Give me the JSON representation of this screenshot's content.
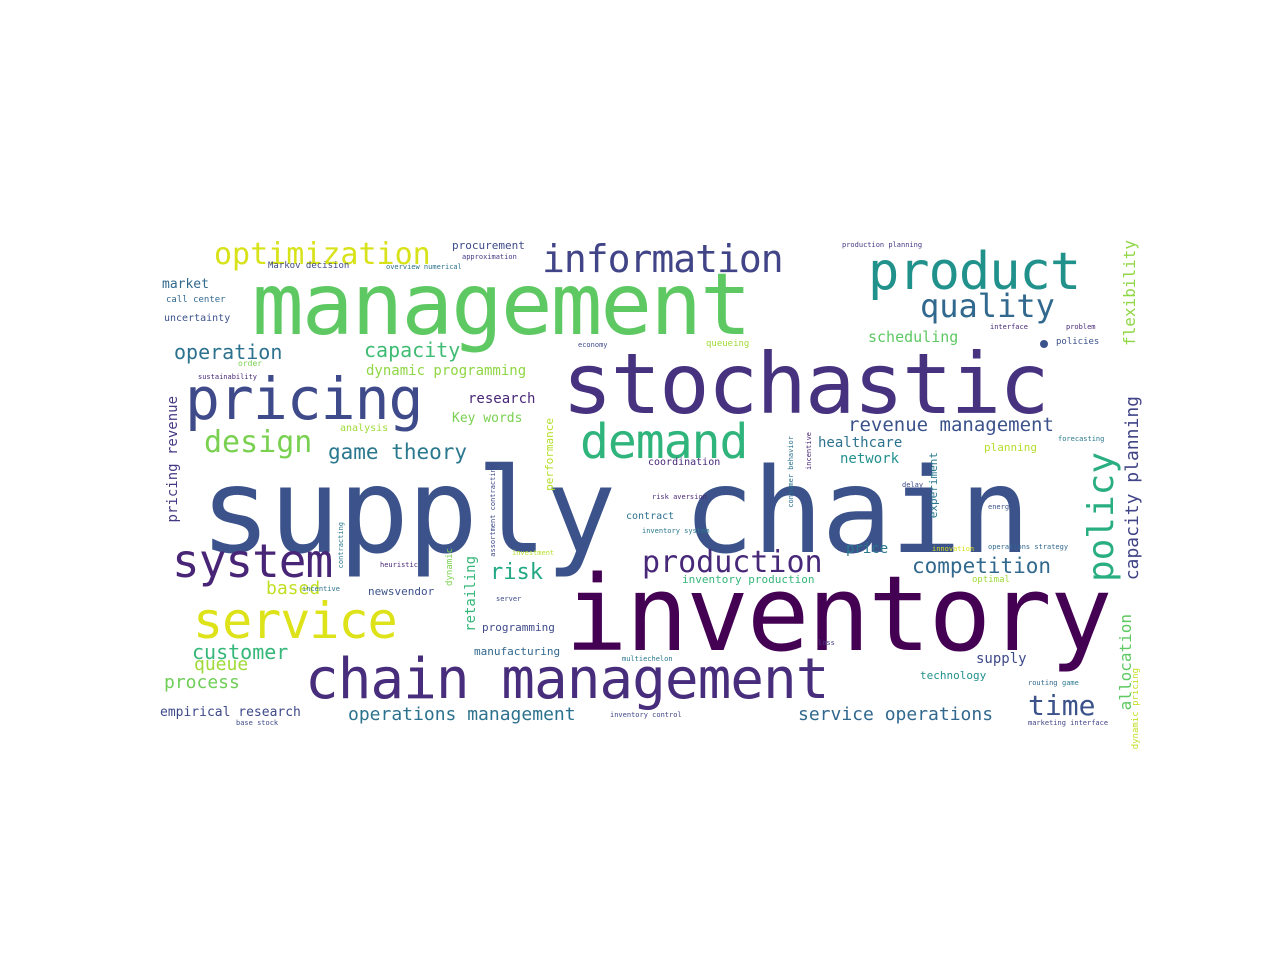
{
  "words": [
    {
      "text": "supply chain",
      "color": "#3b528b"
    },
    {
      "text": "inventory",
      "color": "#440154"
    },
    {
      "text": "management",
      "color": "#5ec962"
    },
    {
      "text": "stochastic",
      "color": "#46327e"
    },
    {
      "text": "chain management",
      "color": "#472d7b"
    },
    {
      "text": "pricing",
      "color": "#3e4a89"
    },
    {
      "text": "product",
      "color": "#21918c"
    },
    {
      "text": "demand",
      "color": "#2fb47c"
    },
    {
      "text": "service",
      "color": "#dde318"
    },
    {
      "text": "system",
      "color": "#482576"
    },
    {
      "text": "information",
      "color": "#414487"
    },
    {
      "text": "optimization",
      "color": "#d8e219"
    },
    {
      "text": "quality",
      "color": "#31688e"
    },
    {
      "text": "production",
      "color": "#482878"
    },
    {
      "text": "policy",
      "color": "#28ae80"
    },
    {
      "text": "design",
      "color": "#7ad151"
    },
    {
      "text": "time",
      "color": "#3b528b"
    },
    {
      "text": "operation",
      "color": "#2c728e"
    },
    {
      "text": "capacity",
      "color": "#3fbc73"
    },
    {
      "text": "game theory",
      "color": "#2a788e"
    },
    {
      "text": "revenue management",
      "color": "#3b528b"
    },
    {
      "text": "competition",
      "color": "#31688e"
    },
    {
      "text": "risk",
      "color": "#22a884"
    },
    {
      "text": "customer",
      "color": "#35b779"
    },
    {
      "text": "queue",
      "color": "#a0da39"
    },
    {
      "text": "process",
      "color": "#6ece58"
    },
    {
      "text": "operations management",
      "color": "#2c728e"
    },
    {
      "text": "service operations",
      "color": "#31688e"
    },
    {
      "text": "empirical research",
      "color": "#3e4a89"
    },
    {
      "text": "capacity planning",
      "color": "#414487"
    },
    {
      "text": "flexibility",
      "color": "#8fd744"
    },
    {
      "text": "allocation",
      "color": "#5ec962"
    },
    {
      "text": "dynamic programming",
      "color": "#8fd744"
    },
    {
      "text": "scheduling",
      "color": "#5ec962"
    },
    {
      "text": "research",
      "color": "#482878"
    },
    {
      "text": "Key words",
      "color": "#7ad151"
    },
    {
      "text": "healthcare",
      "color": "#2c728e"
    },
    {
      "text": "network",
      "color": "#21918c"
    },
    {
      "text": "price",
      "color": "#2a788e"
    },
    {
      "text": "based",
      "color": "#c2df23"
    },
    {
      "text": "newsvendor",
      "color": "#3b528b"
    },
    {
      "text": "programming",
      "color": "#3e4a89"
    },
    {
      "text": "manufacturing",
      "color": "#31688e"
    },
    {
      "text": "supply",
      "color": "#3e4a89"
    },
    {
      "text": "technology",
      "color": "#21918c"
    },
    {
      "text": "inventory production",
      "color": "#35b779"
    },
    {
      "text": "procurement",
      "color": "#3e4a89"
    },
    {
      "text": "market",
      "color": "#31688e"
    },
    {
      "text": "call center",
      "color": "#31688e"
    },
    {
      "text": "uncertainty",
      "color": "#3b528b"
    },
    {
      "text": "pricing revenue",
      "color": "#443983"
    },
    {
      "text": "retailing",
      "color": "#35b779"
    },
    {
      "text": "performance",
      "color": "#b5de2b"
    },
    {
      "text": "analysis",
      "color": "#a0da39"
    },
    {
      "text": "contract",
      "color": "#2c728e"
    },
    {
      "text": "coordination",
      "color": "#482878"
    },
    {
      "text": "experiment",
      "color": "#2a788e"
    },
    {
      "text": "queueing",
      "color": "#a0da39"
    },
    {
      "text": "policies",
      "color": "#3b528b"
    },
    {
      "text": "planning",
      "color": "#b5de2b"
    },
    {
      "text": "dynamic pricing",
      "color": "#c2df23"
    },
    {
      "text": "optimal",
      "color": "#a0da39"
    },
    {
      "text": "dynamic",
      "color": "#7ad151"
    },
    {
      "text": "Markov decision",
      "color": "#3e4a89"
    },
    {
      "text": "overview numerical",
      "color": "#2c728e"
    },
    {
      "text": "approximation",
      "color": "#443983"
    },
    {
      "text": "production planning",
      "color": "#443983"
    },
    {
      "text": "interface",
      "color": "#482878"
    },
    {
      "text": "problem",
      "color": "#482878"
    },
    {
      "text": "order",
      "color": "#7ad151"
    },
    {
      "text": "sustainability",
      "color": "#482878"
    },
    {
      "text": "economy",
      "color": "#3e4a89"
    },
    {
      "text": "forecasting",
      "color": "#2a788e"
    },
    {
      "text": "delay",
      "color": "#3e4a89"
    },
    {
      "text": "energy",
      "color": "#3b528b"
    },
    {
      "text": "routing",
      "color": "#31688e"
    },
    {
      "text": "marketing interface",
      "color": "#414487"
    },
    {
      "text": "game",
      "color": "#2a788e"
    },
    {
      "text": "heuristic",
      "color": "#482878"
    },
    {
      "text": "incentive",
      "color": "#2c728e"
    },
    {
      "text": "server",
      "color": "#3e4a89"
    },
    {
      "text": "multiechelon",
      "color": "#2a788e"
    },
    {
      "text": "inventory control",
      "color": "#414487"
    },
    {
      "text": "base stock",
      "color": "#3e4a89"
    },
    {
      "text": "innovation",
      "color": "#d8e219"
    },
    {
      "text": "operations strategy",
      "color": "#31688e"
    },
    {
      "text": "risk aversion",
      "color": "#482878"
    },
    {
      "text": "inventory system",
      "color": "#2a788e"
    },
    {
      "text": "investment",
      "color": "#b5de2b"
    },
    {
      "text": "consumer behavior",
      "color": "#2c728e"
    },
    {
      "text": "assortment contracting",
      "color": "#3e4a89"
    },
    {
      "text": "incentive",
      "color": "#482878"
    },
    {
      "text": "contracting",
      "color": "#2a788e"
    },
    {
      "text": "loss",
      "color": "#443983"
    }
  ]
}
